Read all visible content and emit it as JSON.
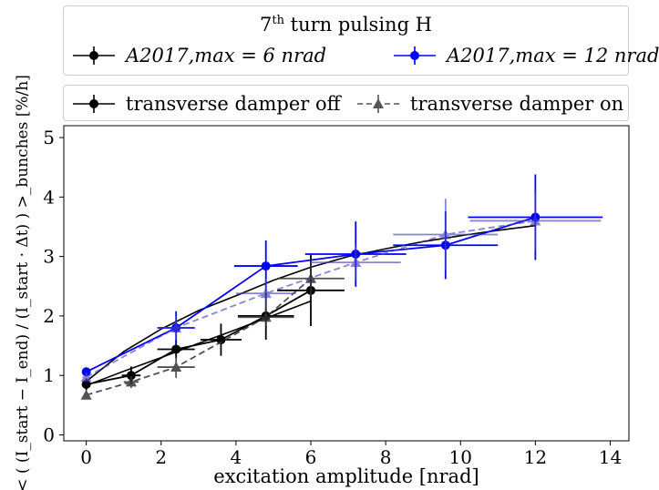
{
  "chart_data": {
    "type": "line",
    "xlabel": "excitation amplitude [nrad]",
    "ylabel": "< ( (I_start − I_end) / (I_start · Δt) ) >_bunches  [%/h]",
    "xlim": [
      -0.6,
      14.5
    ],
    "ylim": [
      -0.1,
      5.2
    ],
    "xticks": [
      0,
      2,
      4,
      6,
      8,
      10,
      12,
      14
    ],
    "yticks": [
      0,
      1,
      2,
      3,
      4,
      5
    ],
    "grid": false,
    "legend_top": {
      "title": "7th turn pulsing H",
      "title_main": "7",
      "title_sup": "th",
      "title_rest": " turn pulsing H",
      "entries": [
        {
          "label": "A2017,max = 6 nrad",
          "color": "#000000"
        },
        {
          "label": "A2017,max = 12 nrad",
          "color": "#0000ff"
        }
      ]
    },
    "legend_bottom": {
      "entries": [
        {
          "label": "transverse damper off",
          "style": "solid",
          "marker": "circle"
        },
        {
          "label": "transverse damper on",
          "style": "dashed",
          "marker": "triangle"
        }
      ]
    },
    "series": [
      {
        "id": "black-off",
        "color": "#000000",
        "dash": "solid",
        "marker": "circle",
        "opacity": 1,
        "x": [
          0,
          1.2,
          2.4,
          3.6,
          4.8,
          6.0
        ],
        "y": [
          0.85,
          1.0,
          1.44,
          1.6,
          2.0,
          2.43
        ],
        "xerr": [
          0.1,
          0.25,
          0.5,
          0.55,
          0.75,
          0.9
        ],
        "yerr": [
          0.1,
          0.15,
          0.15,
          0.27,
          0.4,
          0.6
        ]
      },
      {
        "id": "blue-off",
        "color": "#0000ff",
        "dash": "solid",
        "marker": "circle",
        "opacity": 1,
        "x": [
          0,
          2.4,
          4.8,
          7.2,
          9.6,
          12.0
        ],
        "y": [
          1.06,
          1.8,
          2.84,
          3.04,
          3.19,
          3.66
        ],
        "xerr": [
          0.1,
          0.5,
          0.85,
          1.35,
          1.4,
          1.8
        ],
        "yerr": [
          0.07,
          0.28,
          0.43,
          0.55,
          0.57,
          0.72
        ]
      },
      {
        "id": "black-on",
        "color": "#333333",
        "dash": "dashed",
        "marker": "triangle",
        "opacity": 0.85,
        "x": [
          0,
          1.2,
          2.4,
          4.8,
          6.0
        ],
        "y": [
          0.67,
          0.89,
          1.14,
          1.98,
          2.63
        ],
        "xerr": [
          0.05,
          0.2,
          0.5,
          0.75,
          0.9
        ],
        "yerr": [
          0.05,
          0.1,
          0.18,
          0.15,
          0.3
        ]
      },
      {
        "id": "blue-on",
        "color": "#4444bb",
        "dash": "dashed",
        "marker": "triangle",
        "opacity": 0.65,
        "x": [
          0,
          2.4,
          4.8,
          7.2,
          9.6,
          12.0
        ],
        "y": [
          0.97,
          1.8,
          2.38,
          2.9,
          3.37,
          3.6
        ],
        "xerr": [
          0.1,
          0.5,
          0.8,
          1.2,
          1.4,
          1.75
        ],
        "yerr": [
          0.06,
          0.2,
          0.25,
          0.3,
          0.6,
          0.5
        ]
      }
    ],
    "curves": [
      {
        "id": "fit-black",
        "color": "#000000",
        "x": [
          0,
          1,
          2,
          3,
          4,
          5,
          6
        ],
        "y": [
          0.83,
          1.07,
          1.3,
          1.54,
          1.77,
          2.01,
          2.25
        ]
      },
      {
        "id": "fit-blue",
        "color": "#000000",
        "x": [
          0,
          1,
          2,
          3,
          4,
          5,
          6,
          7,
          8,
          9,
          10,
          11,
          12
        ],
        "y": [
          0.9,
          1.4,
          1.78,
          2.09,
          2.34,
          2.6,
          2.82,
          3.0,
          3.13,
          3.25,
          3.35,
          3.44,
          3.52
        ]
      }
    ]
  }
}
